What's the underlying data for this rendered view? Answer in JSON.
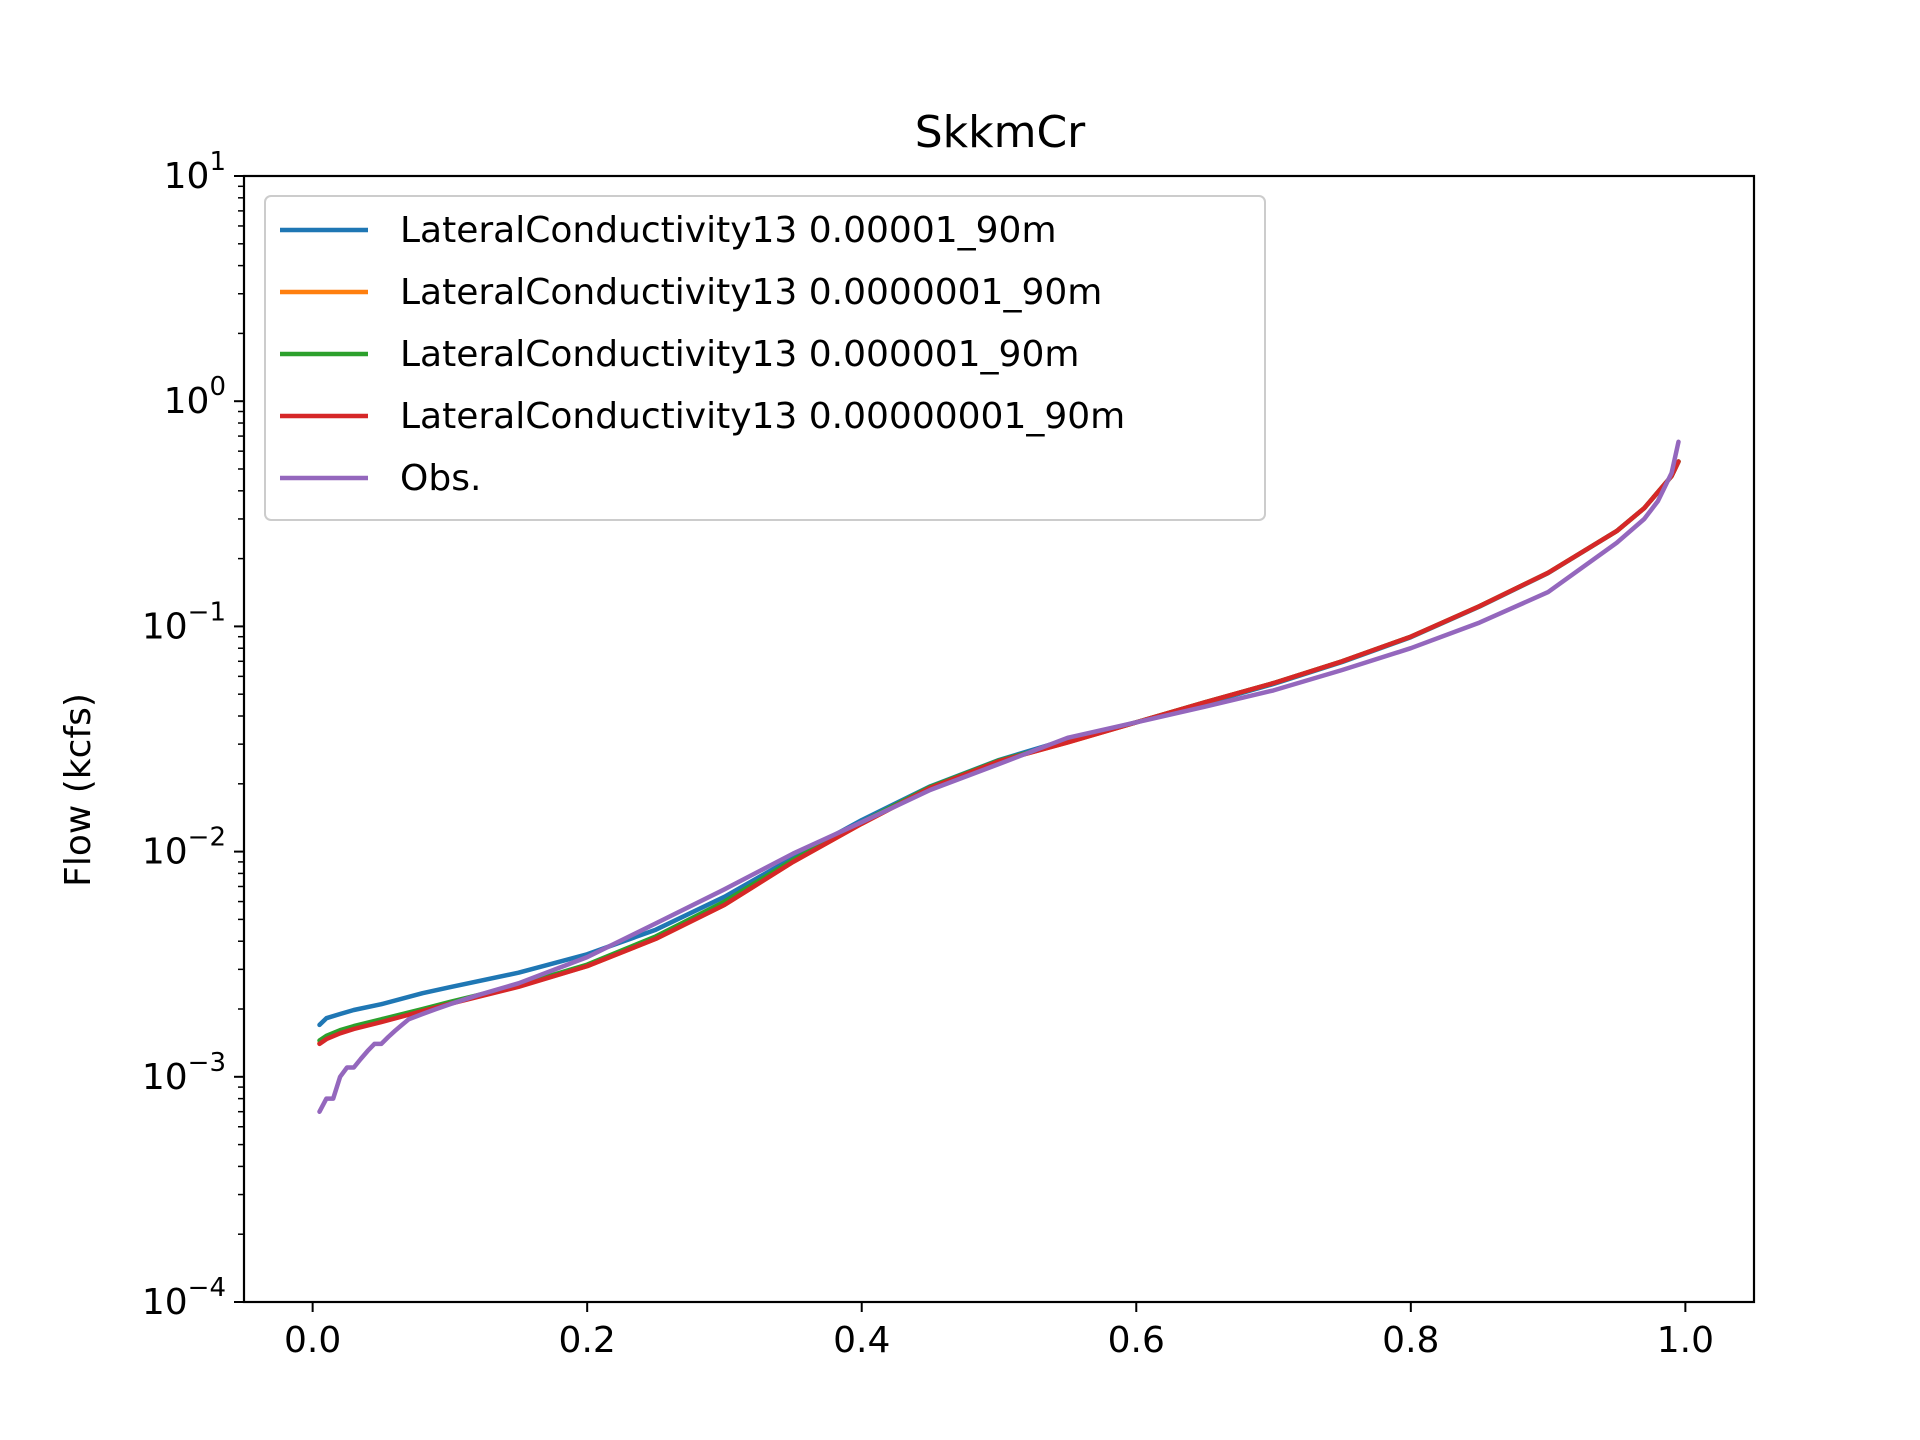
{
  "chart_data": {
    "type": "line",
    "title": "SkkmCr",
    "xlabel": "",
    "ylabel": "Flow (kcfs)",
    "xlim": [
      -0.05,
      1.05
    ],
    "ylim": [
      0.0001,
      10
    ],
    "yscale": "log",
    "x_ticks": [
      {
        "value": 0.0,
        "label": "0.0"
      },
      {
        "value": 0.2,
        "label": "0.2"
      },
      {
        "value": 0.4,
        "label": "0.4"
      },
      {
        "value": 0.6,
        "label": "0.6"
      },
      {
        "value": 0.8,
        "label": "0.8"
      },
      {
        "value": 1.0,
        "label": "1.0"
      }
    ],
    "y_ticks": [
      {
        "exp": 1,
        "base": "10",
        "power": "1"
      },
      {
        "exp": 0,
        "base": "10",
        "power": "0"
      },
      {
        "exp": -1,
        "base": "10",
        "power": "−1"
      },
      {
        "exp": -2,
        "base": "10",
        "power": "−2"
      },
      {
        "exp": -3,
        "base": "10",
        "power": "−3"
      },
      {
        "exp": -4,
        "base": "10",
        "power": "−4"
      }
    ],
    "grid": false,
    "legend_position": "upper-left",
    "series": [
      {
        "name": "LateralConductivity13 0.00001_90m",
        "color": "#1f77b4",
        "x": [
          0.005,
          0.01,
          0.02,
          0.03,
          0.05,
          0.08,
          0.1,
          0.15,
          0.2,
          0.25,
          0.3,
          0.35,
          0.4,
          0.45,
          0.5,
          0.55,
          0.6,
          0.65,
          0.7,
          0.75,
          0.8,
          0.85,
          0.9,
          0.95,
          0.97,
          0.99,
          0.995
        ],
        "y": [
          0.0017,
          0.00182,
          0.0019,
          0.00198,
          0.0021,
          0.00235,
          0.0025,
          0.0029,
          0.0035,
          0.0045,
          0.0063,
          0.0094,
          0.0138,
          0.0195,
          0.0255,
          0.0315,
          0.0375,
          0.0455,
          0.0555,
          0.0695,
          0.0895,
          0.1225,
          0.1725,
          0.265,
          0.335,
          0.465,
          0.54
        ]
      },
      {
        "name": "LateralConductivity13 0.0000001_90m",
        "color": "#ff7f0e",
        "x": [
          0.005,
          0.01,
          0.02,
          0.03,
          0.05,
          0.08,
          0.1,
          0.15,
          0.2,
          0.25,
          0.3,
          0.35,
          0.4,
          0.45,
          0.5,
          0.55,
          0.6,
          0.65,
          0.7,
          0.75,
          0.8,
          0.85,
          0.9,
          0.95,
          0.97,
          0.99,
          0.995
        ],
        "y": [
          0.00141,
          0.00148,
          0.00157,
          0.00164,
          0.00176,
          0.00197,
          0.00212,
          0.00252,
          0.0031,
          0.0041,
          0.0058,
          0.009,
          0.0133,
          0.0192,
          0.0252,
          0.0305,
          0.0375,
          0.046,
          0.056,
          0.07,
          0.09,
          0.123,
          0.173,
          0.265,
          0.335,
          0.465,
          0.54
        ]
      },
      {
        "name": "LateralConductivity13 0.000001_90m",
        "color": "#2ca02c",
        "x": [
          0.005,
          0.01,
          0.02,
          0.03,
          0.05,
          0.08,
          0.1,
          0.15,
          0.2,
          0.25,
          0.3,
          0.35,
          0.4,
          0.45,
          0.5,
          0.55,
          0.6,
          0.65,
          0.7,
          0.75,
          0.8,
          0.85,
          0.9,
          0.95,
          0.97,
          0.99,
          0.995
        ],
        "y": [
          0.00145,
          0.00152,
          0.00161,
          0.00168,
          0.0018,
          0.002,
          0.00215,
          0.00255,
          0.00315,
          0.0042,
          0.006,
          0.0092,
          0.0135,
          0.0194,
          0.0254,
          0.0307,
          0.0375,
          0.046,
          0.056,
          0.07,
          0.09,
          0.123,
          0.173,
          0.265,
          0.335,
          0.465,
          0.54
        ]
      },
      {
        "name": "LateralConductivity13 0.00000001_90m",
        "color": "#d62728",
        "x": [
          0.005,
          0.01,
          0.02,
          0.03,
          0.05,
          0.08,
          0.1,
          0.15,
          0.2,
          0.25,
          0.3,
          0.35,
          0.4,
          0.45,
          0.5,
          0.55,
          0.6,
          0.65,
          0.7,
          0.75,
          0.8,
          0.85,
          0.9,
          0.95,
          0.97,
          0.99,
          0.995
        ],
        "y": [
          0.0014,
          0.00147,
          0.00156,
          0.00163,
          0.00175,
          0.00196,
          0.00211,
          0.00251,
          0.0031,
          0.0041,
          0.0058,
          0.009,
          0.0133,
          0.0192,
          0.0252,
          0.0305,
          0.0375,
          0.046,
          0.056,
          0.07,
          0.09,
          0.123,
          0.173,
          0.265,
          0.335,
          0.465,
          0.54
        ]
      },
      {
        "name": "Obs.",
        "color": "#9467bd",
        "x": [
          0.005,
          0.01,
          0.015,
          0.02,
          0.025,
          0.03,
          0.035,
          0.04,
          0.045,
          0.05,
          0.055,
          0.06,
          0.065,
          0.07,
          0.08,
          0.09,
          0.1,
          0.12,
          0.15,
          0.2,
          0.25,
          0.3,
          0.35,
          0.4,
          0.45,
          0.5,
          0.55,
          0.6,
          0.65,
          0.7,
          0.75,
          0.8,
          0.85,
          0.9,
          0.95,
          0.97,
          0.98,
          0.99,
          0.995
        ],
        "y": [
          0.0007,
          0.0008,
          0.0008,
          0.001,
          0.0011,
          0.0011,
          0.0012,
          0.0013,
          0.0014,
          0.0014,
          0.0015,
          0.0016,
          0.0017,
          0.0018,
          0.0019,
          0.002,
          0.0021,
          0.0023,
          0.0026,
          0.0034,
          0.0048,
          0.0068,
          0.0098,
          0.0135,
          0.0188,
          0.0245,
          0.032,
          0.0375,
          0.044,
          0.052,
          0.064,
          0.08,
          0.104,
          0.142,
          0.235,
          0.3,
          0.36,
          0.48,
          0.66
        ]
      }
    ]
  }
}
